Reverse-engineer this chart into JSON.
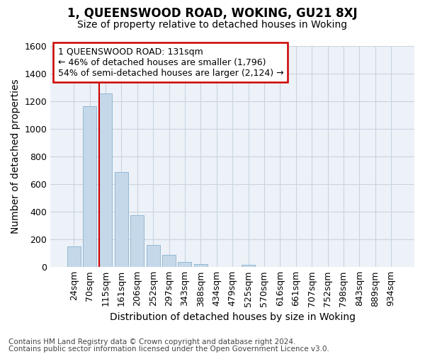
{
  "title1": "1, QUEENSWOOD ROAD, WOKING, GU21 8XJ",
  "title2": "Size of property relative to detached houses in Woking",
  "xlabel": "Distribution of detached houses by size in Woking",
  "ylabel": "Number of detached properties",
  "categories": [
    "24sqm",
    "70sqm",
    "115sqm",
    "161sqm",
    "206sqm",
    "252sqm",
    "297sqm",
    "343sqm",
    "388sqm",
    "434sqm",
    "479sqm",
    "525sqm",
    "570sqm",
    "616sqm",
    "661sqm",
    "707sqm",
    "752sqm",
    "798sqm",
    "843sqm",
    "889sqm",
    "934sqm"
  ],
  "values": [
    147,
    1165,
    1258,
    690,
    375,
    160,
    90,
    38,
    20,
    0,
    0,
    18,
    0,
    0,
    0,
    0,
    0,
    0,
    0,
    0,
    0
  ],
  "bar_color": "#c5d8ea",
  "bar_edge_color": "#93b8d3",
  "highlight_index": 2,
  "highlight_color": "#cc0000",
  "annotation_box_color": "#cc0000",
  "annotation_line1": "1 QUEENSWOOD ROAD: 131sqm",
  "annotation_line2": "← 46% of detached houses are smaller (1,796)",
  "annotation_line3": "54% of semi-detached houses are larger (2,124) →",
  "ylim": [
    0,
    1600
  ],
  "yticks": [
    0,
    200,
    400,
    600,
    800,
    1000,
    1200,
    1400,
    1600
  ],
  "footnote1": "Contains HM Land Registry data © Crown copyright and database right 2024.",
  "footnote2": "Contains public sector information licensed under the Open Government Licence v3.0.",
  "background_color": "#ffffff",
  "plot_bg_color": "#edf2f8",
  "grid_color": "#c8d4e0",
  "title1_fontsize": 12,
  "title2_fontsize": 10,
  "annotation_fontsize": 9,
  "axis_label_fontsize": 10,
  "tick_fontsize": 9,
  "footnote_fontsize": 7.5
}
